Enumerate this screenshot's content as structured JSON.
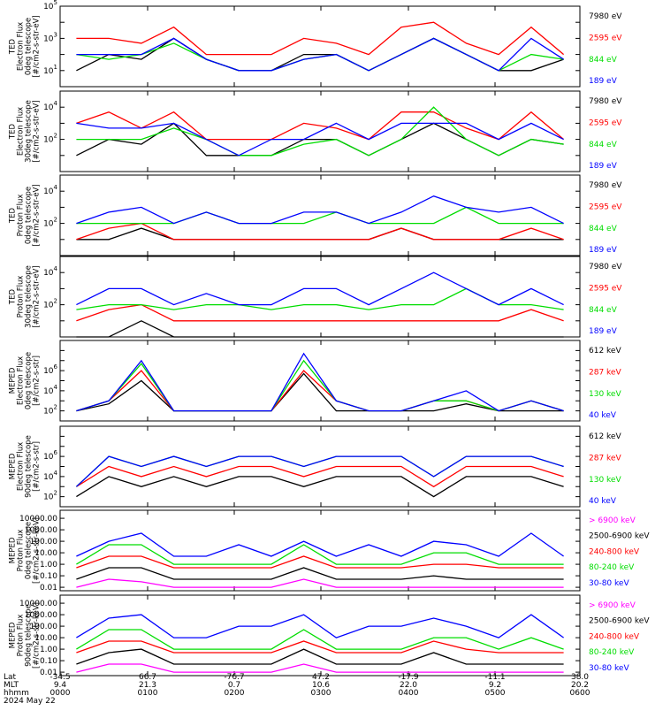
{
  "chart_data": [
    {
      "type": "line",
      "ylabel_lines": [
        "TED",
        "Electron Flux",
        "0deg telescope",
        "[#/cm2-s-str-eV]"
      ],
      "ytick_mode": "exp",
      "ytick_exps": [
        1,
        3,
        5
      ],
      "ylim": [
        1,
        100000
      ],
      "log_y": true,
      "series": [
        {
          "name": "7980 eV",
          "color": "#000000",
          "values": [
            10.0,
            100.0,
            50.0,
            1000.0,
            50.0,
            10.0,
            10.0,
            100.0,
            100.0,
            10.0,
            100.0,
            1000.0,
            100.0,
            10.0,
            10.0,
            50.0
          ]
        },
        {
          "name": "2595 eV",
          "color": "#ff0000",
          "values": [
            1000.0,
            1000.0,
            500.0,
            5000.0,
            100.0,
            100.0,
            100.0,
            1000.0,
            500.0,
            100.0,
            5000.0,
            10000.0,
            500.0,
            100.0,
            5000.0,
            100.0
          ]
        },
        {
          "name": "844 eV",
          "color": "#00dd00",
          "values": [
            100.0,
            50.0,
            100.0,
            500.0,
            50.0,
            10.0,
            10.0,
            50.0,
            100.0,
            10.0,
            100.0,
            1000.0,
            100.0,
            10.0,
            100.0,
            50.0
          ]
        },
        {
          "name": "189 eV",
          "color": "#0000ff",
          "values": [
            100.0,
            100.0,
            100.0,
            1000.0,
            50.0,
            10.0,
            10.0,
            50.0,
            100.0,
            10.0,
            100.0,
            1000.0,
            100.0,
            10.0,
            1000.0,
            50.0
          ]
        }
      ]
    },
    {
      "type": "line",
      "ylabel_lines": [
        "TED",
        "Electron Flux",
        "30deg telescope",
        "[#/cm2-s-str-eV]"
      ],
      "ytick_mode": "exp",
      "ytick_exps": [
        2,
        4
      ],
      "ylim": [
        1,
        100000
      ],
      "log_y": true,
      "series": [
        {
          "name": "7980 eV",
          "color": "#000000",
          "values": [
            10.0,
            100.0,
            50.0,
            1000.0,
            10.0,
            10.0,
            10.0,
            100.0,
            100.0,
            10.0,
            100.0,
            1000.0,
            100.0,
            10.0,
            100.0,
            50.0
          ]
        },
        {
          "name": "2595 eV",
          "color": "#ff0000",
          "values": [
            1000.0,
            5000.0,
            500.0,
            5000.0,
            100.0,
            100.0,
            100.0,
            1000.0,
            500.0,
            100.0,
            5000.0,
            5000.0,
            500.0,
            100.0,
            5000.0,
            100.0
          ]
        },
        {
          "name": "844 eV",
          "color": "#00dd00",
          "values": [
            100.0,
            100.0,
            100.0,
            500.0,
            100.0,
            10.0,
            10.0,
            50.0,
            100.0,
            10.0,
            100.0,
            10000.0,
            100.0,
            10.0,
            100.0,
            50.0
          ]
        },
        {
          "name": "189 eV",
          "color": "#0000ff",
          "values": [
            1000.0,
            500.0,
            500.0,
            1000.0,
            100.0,
            10.0,
            100.0,
            100.0,
            1000.0,
            100.0,
            1000.0,
            1000.0,
            1000.0,
            100.0,
            1000.0,
            100.0
          ]
        }
      ]
    },
    {
      "type": "line",
      "ylabel_lines": [
        "TED",
        "Proton Flux",
        "0deg telescope",
        "[#/cm2-s-str-eV]"
      ],
      "ytick_mode": "exp",
      "ytick_exps": [
        2,
        4
      ],
      "ylim": [
        1,
        100000
      ],
      "log_y": true,
      "series": [
        {
          "name": "7980 eV",
          "color": "#000000",
          "values": [
            10.0,
            10.0,
            50.0,
            10.0,
            10.0,
            10.0,
            10.0,
            10.0,
            10.0,
            10.0,
            50.0,
            10.0,
            10.0,
            10.0,
            10.0,
            10.0
          ]
        },
        {
          "name": "2595 eV",
          "color": "#ff0000",
          "values": [
            10.0,
            50.0,
            100.0,
            10.0,
            10.0,
            10.0,
            10.0,
            10.0,
            10.0,
            10.0,
            50.0,
            10.0,
            10.0,
            10.0,
            50.0,
            10.0
          ]
        },
        {
          "name": "844 eV",
          "color": "#00dd00",
          "values": [
            100.0,
            100.0,
            100.0,
            100.0,
            500.0,
            100.0,
            100.0,
            100.0,
            500.0,
            100.0,
            100.0,
            100.0,
            1000.0,
            100.0,
            100.0,
            100.0
          ]
        },
        {
          "name": "189 eV",
          "color": "#0000ff",
          "values": [
            100.0,
            500.0,
            1000.0,
            100.0,
            500.0,
            100.0,
            100.0,
            500.0,
            500.0,
            100.0,
            500.0,
            5000.0,
            1000.0,
            500.0,
            1000.0,
            100.0
          ]
        }
      ]
    },
    {
      "type": "line",
      "ylabel_lines": [
        "TED",
        "Proton Flux",
        "30deg telescope",
        "[#/cm2-s-str-eV]"
      ],
      "ytick_mode": "exp",
      "ytick_exps": [
        2,
        4
      ],
      "ylim": [
        1,
        100000
      ],
      "log_y": true,
      "series": [
        {
          "name": "7980 eV",
          "color": "#000000",
          "values": [
            1.0,
            1.0,
            10.0,
            1.0,
            1.0,
            1.0,
            1.0,
            1.0,
            1.0,
            1.0,
            1.0,
            1.0,
            1.0,
            1.0,
            1.0,
            1.0
          ]
        },
        {
          "name": "2595 eV",
          "color": "#ff0000",
          "values": [
            10.0,
            50.0,
            100.0,
            10.0,
            10.0,
            10.0,
            10.0,
            10.0,
            10.0,
            10.0,
            10.0,
            10.0,
            10.0,
            10.0,
            50.0,
            10.0
          ]
        },
        {
          "name": "844 eV",
          "color": "#00dd00",
          "values": [
            50.0,
            100.0,
            100.0,
            50.0,
            100.0,
            100.0,
            50.0,
            100.0,
            100.0,
            50.0,
            100.0,
            100.0,
            1000.0,
            100.0,
            100.0,
            50.0
          ]
        },
        {
          "name": "189 eV",
          "color": "#0000ff",
          "values": [
            100.0,
            1000.0,
            1000.0,
            100.0,
            500.0,
            100.0,
            100.0,
            1000.0,
            1000.0,
            100.0,
            1000.0,
            10000.0,
            1000.0,
            100.0,
            1000.0,
            100.0
          ]
        }
      ]
    },
    {
      "type": "line",
      "ylabel_lines": [
        "MEPED",
        "Electron Flux",
        "0deg telescope",
        "[#/cm2-s-str]"
      ],
      "ytick_mode": "exp",
      "ytick_exps": [
        2,
        4,
        6
      ],
      "ylim": [
        10,
        1000000000
      ],
      "log_y": true,
      "series": [
        {
          "name": "612 keV",
          "color": "#000000",
          "values": [
            100.0,
            500.0,
            100000.0,
            100.0,
            100.0,
            100.0,
            100.0,
            500000.0,
            100.0,
            100.0,
            100.0,
            100.0,
            500.0,
            100.0,
            100.0,
            100.0
          ]
        },
        {
          "name": "287 keV",
          "color": "#ff0000",
          "values": [
            100.0,
            1000.0,
            1000000.0,
            100.0,
            100.0,
            100.0,
            100.0,
            1000000.0,
            1000.0,
            100.0,
            100.0,
            1000.0,
            1000.0,
            100.0,
            1000.0,
            100.0
          ]
        },
        {
          "name": "130 keV",
          "color": "#00dd00",
          "values": [
            100.0,
            1000.0,
            5000000.0,
            100.0,
            100.0,
            100.0,
            100.0,
            10000000.0,
            1000.0,
            100.0,
            100.0,
            1000.0,
            1000.0,
            100.0,
            1000.0,
            100.0
          ]
        },
        {
          "name": "40 keV",
          "color": "#0000ff",
          "values": [
            100.0,
            1000.0,
            10000000.0,
            100.0,
            100.0,
            100.0,
            100.0,
            50000000.0,
            1000.0,
            100.0,
            100.0,
            1000.0,
            10000.0,
            100.0,
            1000.0,
            100.0
          ]
        }
      ]
    },
    {
      "type": "line",
      "ylabel_lines": [
        "MEPED",
        "Electron Flux",
        "90deg telescope",
        "[#/cm2-s-str]"
      ],
      "ytick_mode": "exp",
      "ytick_exps": [
        2,
        4,
        6
      ],
      "ylim": [
        10,
        1000000000
      ],
      "log_y": true,
      "series": [
        {
          "name": "612 keV",
          "color": "#000000",
          "values": [
            100.0,
            10000.0,
            1000.0,
            10000.0,
            1000.0,
            10000.0,
            10000.0,
            1000.0,
            10000.0,
            10000.0,
            10000.0,
            100.0,
            10000.0,
            10000.0,
            10000.0,
            1000.0
          ]
        },
        {
          "name": "287 keV",
          "color": "#ff0000",
          "values": [
            1000.0,
            100000.0,
            10000.0,
            100000.0,
            10000.0,
            100000.0,
            100000.0,
            10000.0,
            100000.0,
            100000.0,
            100000.0,
            1000.0,
            100000.0,
            100000.0,
            100000.0,
            10000.0
          ]
        },
        {
          "name": "130 keV",
          "color": "#00dd00",
          "values": [
            1000.0,
            1000000.0,
            100000.0,
            1000000.0,
            100000.0,
            1000000.0,
            1000000.0,
            100000.0,
            1000000.0,
            1000000.0,
            1000000.0,
            10000.0,
            1000000.0,
            1000000.0,
            1000000.0,
            100000.0
          ]
        },
        {
          "name": "40 keV",
          "color": "#0000ff",
          "values": [
            1000.0,
            1000000.0,
            100000.0,
            1000000.0,
            100000.0,
            1000000.0,
            1000000.0,
            100000.0,
            1000000.0,
            1000000.0,
            1000000.0,
            10000.0,
            1000000.0,
            1000000.0,
            1000000.0,
            100000.0
          ]
        }
      ]
    },
    {
      "type": "line",
      "ylabel_lines": [
        "MEPED",
        "Proton Flux",
        "0deg telescope",
        "[#/cm2-s-str-keV]"
      ],
      "ytick_mode": "labels",
      "ytick_labels": [
        "10000.00",
        "1000.00",
        "100.00",
        "10.00",
        "1.00",
        "0.10",
        "0.01"
      ],
      "ytick_values": [
        10000,
        1000,
        100,
        10,
        1,
        0.1,
        0.01
      ],
      "ylim": [
        0.005,
        50000
      ],
      "log_y": true,
      "series": [
        {
          "name": "> 6900 keV",
          "color": "#ff00ff",
          "values": [
            0.01,
            0.05,
            0.03,
            0.01,
            0.01,
            0.01,
            0.01,
            0.05,
            0.01,
            0.01,
            0.01,
            0.01,
            0.01,
            0.01,
            0.01,
            0.01
          ]
        },
        {
          "name": "2500-6900 keV",
          "color": "#000000",
          "values": [
            0.05,
            0.5,
            0.5,
            0.05,
            0.05,
            0.05,
            0.05,
            0.5,
            0.05,
            0.05,
            0.05,
            0.1,
            0.05,
            0.05,
            0.05,
            0.05
          ]
        },
        {
          "name": "240-800 keV",
          "color": "#ff0000",
          "values": [
            0.5,
            5,
            5,
            0.5,
            0.5,
            0.5,
            0.5,
            5,
            0.5,
            0.5,
            0.5,
            1,
            1,
            0.5,
            0.5,
            0.5
          ]
        },
        {
          "name": "80-240 keV",
          "color": "#00dd00",
          "values": [
            1,
            50,
            50,
            1,
            1,
            1,
            1,
            50,
            1,
            1,
            1,
            10,
            10,
            1,
            1,
            1
          ]
        },
        {
          "name": "30-80 keV",
          "color": "#0000ff",
          "values": [
            5,
            100,
            500,
            5,
            5,
            50,
            5,
            100,
            5,
            50,
            5,
            100,
            50,
            5,
            500,
            5
          ]
        }
      ]
    },
    {
      "type": "line",
      "ylabel_lines": [
        "MEPED",
        "Proton Flux",
        "90deg telescope",
        "[#/cm2-s-str-keV]"
      ],
      "ytick_mode": "labels",
      "ytick_labels": [
        "10000.00",
        "1000.00",
        "100.00",
        "10.00",
        "1.00",
        "0.10",
        "0.01"
      ],
      "ytick_values": [
        10000,
        1000,
        100,
        10,
        1,
        0.1,
        0.01
      ],
      "ylim": [
        0.005,
        50000
      ],
      "log_y": true,
      "series": [
        {
          "name": "> 6900 keV",
          "color": "#ff00ff",
          "values": [
            0.01,
            0.05,
            0.05,
            0.01,
            0.01,
            0.01,
            0.01,
            0.05,
            0.01,
            0.01,
            0.01,
            0.01,
            0.01,
            0.01,
            0.01,
            0.01
          ]
        },
        {
          "name": "2500-6900 keV",
          "color": "#000000",
          "values": [
            0.05,
            0.5,
            1,
            0.05,
            0.05,
            0.05,
            0.05,
            1,
            0.05,
            0.05,
            0.05,
            0.5,
            0.05,
            0.05,
            0.05,
            0.05
          ]
        },
        {
          "name": "240-800 keV",
          "color": "#ff0000",
          "values": [
            0.5,
            5,
            5,
            0.5,
            0.5,
            0.5,
            0.5,
            5,
            0.5,
            0.5,
            0.5,
            5,
            1,
            0.5,
            0.5,
            0.5
          ]
        },
        {
          "name": "80-240 keV",
          "color": "#00dd00",
          "values": [
            1,
            50,
            50,
            1,
            1,
            1,
            1,
            50,
            1,
            1,
            1,
            10,
            10,
            1,
            10,
            1
          ]
        },
        {
          "name": "30-80 keV",
          "color": "#0000ff",
          "values": [
            10,
            500,
            1000,
            10,
            10,
            100,
            100,
            1000,
            10,
            100,
            100,
            500,
            100,
            10,
            1000,
            10
          ]
        }
      ]
    }
  ],
  "xaxis": {
    "rows": [
      {
        "label": "Lat",
        "values": [
          "-34.5",
          "66.7",
          "-76.7",
          "47.2",
          "-17.9",
          "-11.1",
          "38.0"
        ]
      },
      {
        "label": "MLT",
        "values": [
          "9.4",
          "21.3",
          "0.7",
          "10.6",
          "22.0",
          "9.2",
          "20.2"
        ]
      },
      {
        "label": "hhmm",
        "values": [
          "0000",
          "0100",
          "0200",
          "0300",
          "0400",
          "0500",
          "0600"
        ]
      }
    ],
    "date": "2024 May 22"
  }
}
